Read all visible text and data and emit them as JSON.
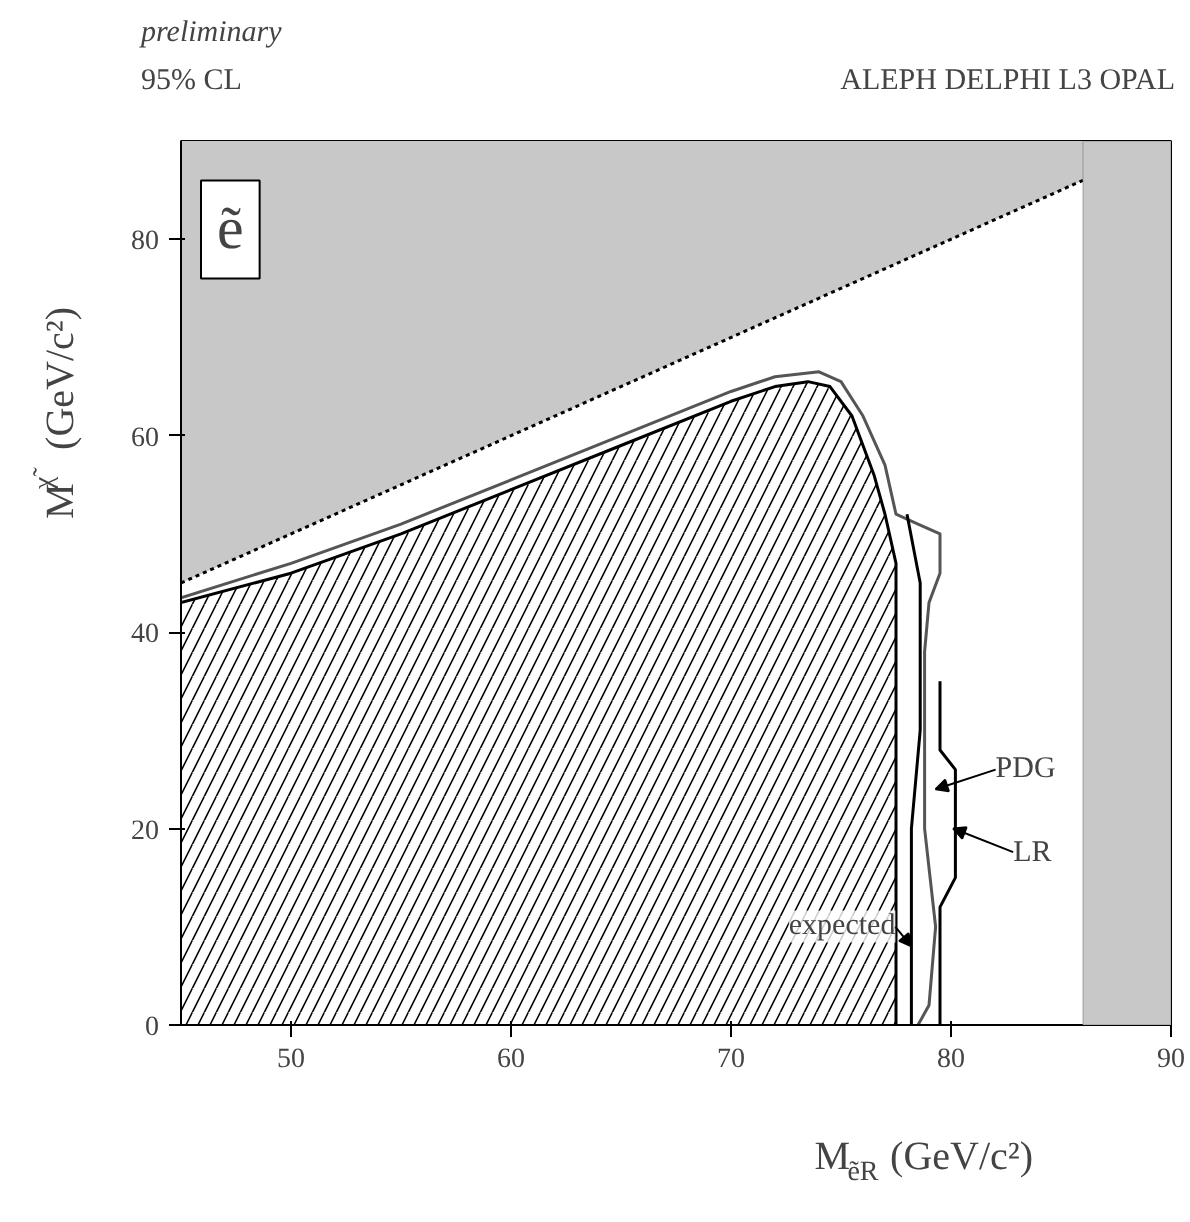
{
  "chart_data": {
    "type": "area",
    "title": "preliminary",
    "subtitle": "95% CL",
    "xlabel": "M$_{ẽR}$ (GeV/c²)",
    "ylabel": "M$_{χ̃}$ (GeV/c²)",
    "xlim": [
      45,
      90
    ],
    "ylim": [
      0,
      90
    ],
    "xticks": [
      50,
      60,
      70,
      80,
      90
    ],
    "yticks": [
      0,
      20,
      40,
      60,
      80
    ],
    "series": [
      {
        "type": "line",
        "line_style": "dotted",
        "color": "#000000",
        "x": [
          45,
          86
        ],
        "values": [
          45,
          86
        ],
        "lower": [
          45,
          86
        ],
        "upper": [
          90,
          90
        ]
      },
      {
        "color": "#000000",
        "x": [
          45,
          50,
          55,
          60,
          65,
          70,
          72,
          73.5,
          74.5,
          75.5,
          76.5,
          77,
          77.5,
          77.5
        ],
        "values": [
          43,
          46,
          50,
          54.5,
          59,
          63.5,
          65,
          65.5,
          65,
          62,
          56,
          52,
          47,
          0
        ]
      },
      {
        "type": "line",
        "color": "#555555",
        "x": [
          45,
          50,
          55,
          60,
          65,
          70,
          72,
          74,
          75,
          76,
          77,
          77.5,
          78.5,
          79.5,
          79.5,
          79,
          78.8,
          78.8,
          79.3,
          79,
          78.5
        ],
        "values": [
          43.5,
          47,
          51,
          55.5,
          60,
          64.5,
          66,
          66.5,
          65.5,
          62,
          57,
          52,
          51,
          50,
          46,
          43,
          38,
          20,
          10,
          2,
          0
        ]
      },
      {
        "type": "line",
        "color": "#000000",
        "x": [
          78.2,
          78.2,
          78.6,
          78.6,
          78
        ],
        "values": [
          0,
          20,
          30,
          45,
          52
        ]
      },
      {
        "type": "line",
        "color": "#000000",
        "x": [
          79.5,
          79.5,
          80.2,
          80.2,
          79.5,
          79.5
        ],
        "values": [
          0,
          12,
          15,
          26,
          28,
          35
        ]
      }
    ],
    "bands": [
      {
        "axis": "x",
        "from": 86,
        "to": 90,
        "color": "#c8c8c8"
      }
    ],
    "annotations": [
      "ALEPH DELPHI L3 OPAL",
      "ẽ",
      {
        "text": "PDG",
        "x": 79.3,
        "y": 24
      },
      {
        "text": "LR",
        "x": 80.1,
        "y": 20
      },
      {
        "text": "expected",
        "x": 78.2,
        "y": 8
      }
    ]
  }
}
